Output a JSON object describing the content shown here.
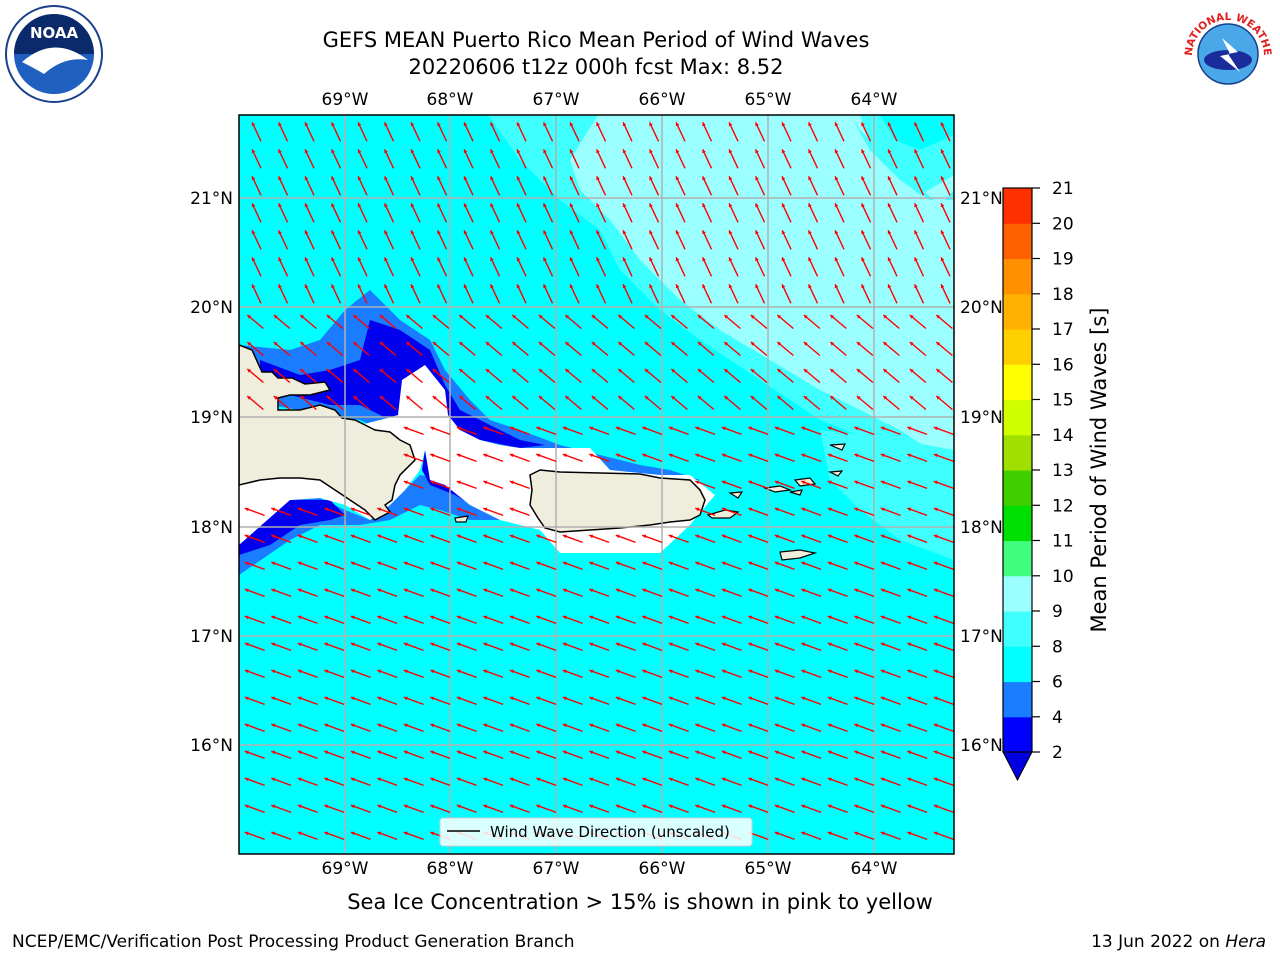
{
  "title": {
    "line1": "GEFS MEAN Puerto Rico Mean Period of Wind Waves",
    "line2": "20220606 t12z 000h fcst   Max: 8.52"
  },
  "logos": {
    "left": "noaa-logo",
    "left_text": "NOAA",
    "right": "national-weather-service-logo",
    "right_text": "NATIONAL WEATHER SERVICE"
  },
  "map": {
    "lon_ticks": [
      "69°W",
      "68°W",
      "67°W",
      "66°W",
      "65°W",
      "64°W"
    ],
    "lat_ticks": [
      "21°N",
      "20°N",
      "19°N",
      "18°N",
      "17°N",
      "16°N"
    ],
    "legend_label": "Wind Wave Direction (unscaled)",
    "arrow_color": "#ff0000",
    "land_color": "#efeddc",
    "grid": true
  },
  "colorbar": {
    "label": "Mean Period of Wind Waves [s]",
    "ticks": [
      "2",
      "4",
      "6",
      "8",
      "9",
      "10",
      "11",
      "12",
      "13",
      "14",
      "15",
      "16",
      "17",
      "18",
      "19",
      "20",
      "21"
    ],
    "colors": [
      "#0000ff",
      "#1a7cff",
      "#00ffff",
      "#40ffff",
      "#9cffff",
      "#40ff80",
      "#00e000",
      "#40d000",
      "#a0e000",
      "#d0ff00",
      "#ffff00",
      "#ffd000",
      "#ffb000",
      "#ff9000",
      "#ff6000",
      "#ff3000",
      "#ff0000"
    ],
    "under_color": "#0000e0"
  },
  "notes": {
    "sea_ice": "Sea Ice Concentration > 15% is shown in pink to yellow",
    "branch": "NCEP/EMC/Verification Post Processing Product Generation Branch",
    "date_prefix": "13 Jun 2022 on ",
    "machine": "Hera"
  }
}
